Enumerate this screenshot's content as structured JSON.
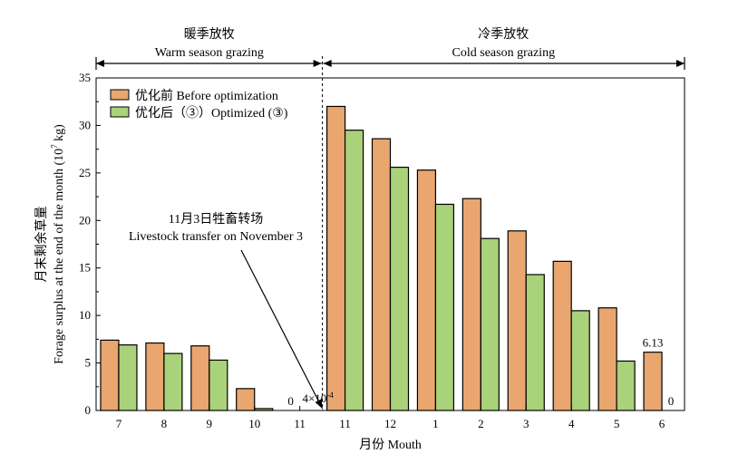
{
  "chart_data": {
    "type": "bar",
    "categories": [
      "7",
      "8",
      "9",
      "10",
      "11",
      "11",
      "12",
      "1",
      "2",
      "3",
      "4",
      "5",
      "6"
    ],
    "series": [
      {
        "name": "优化前 Before optimization",
        "color": "#E9A66F",
        "values": [
          7.4,
          7.1,
          6.8,
          2.3,
          0,
          32.0,
          28.6,
          25.3,
          22.3,
          18.9,
          15.7,
          10.8,
          6.13
        ]
      },
      {
        "name": "优化后（③）Optimized (③)",
        "color": "#A9D27A",
        "values": [
          6.9,
          6.0,
          5.3,
          0.2,
          0.0004,
          29.5,
          25.6,
          21.7,
          18.1,
          14.3,
          10.5,
          5.2,
          0
        ]
      }
    ],
    "xlabel": "月份 Mouth",
    "ylabel_cn": "月末剩余草量",
    "ylabel_en": "Forage surplus at the end of the month (10",
    "ylabel_sup": "7",
    "ylabel_unit": " kg)",
    "ylim": [
      0,
      35
    ],
    "yticks": [
      0,
      5,
      10,
      15,
      20,
      25,
      30,
      35
    ],
    "grid": false,
    "legend_position": "top-left",
    "seasons": [
      {
        "cn": "暖季放牧",
        "en": "Warm season grazing",
        "from_index": 0,
        "to_index": 4
      },
      {
        "cn": "冷季放牧",
        "en": "Cold season grazing",
        "from_index": 5,
        "to_index": 12
      }
    ],
    "annotations": {
      "transfer_cn": "11月3日牲畜转场",
      "transfer_en": "Livestock transfer on November 3",
      "zero_label_nov": "0",
      "tiny_label_base": "4×10",
      "tiny_label_exp": "-4",
      "label_june_before": "6.13",
      "label_june_after": "0"
    }
  }
}
